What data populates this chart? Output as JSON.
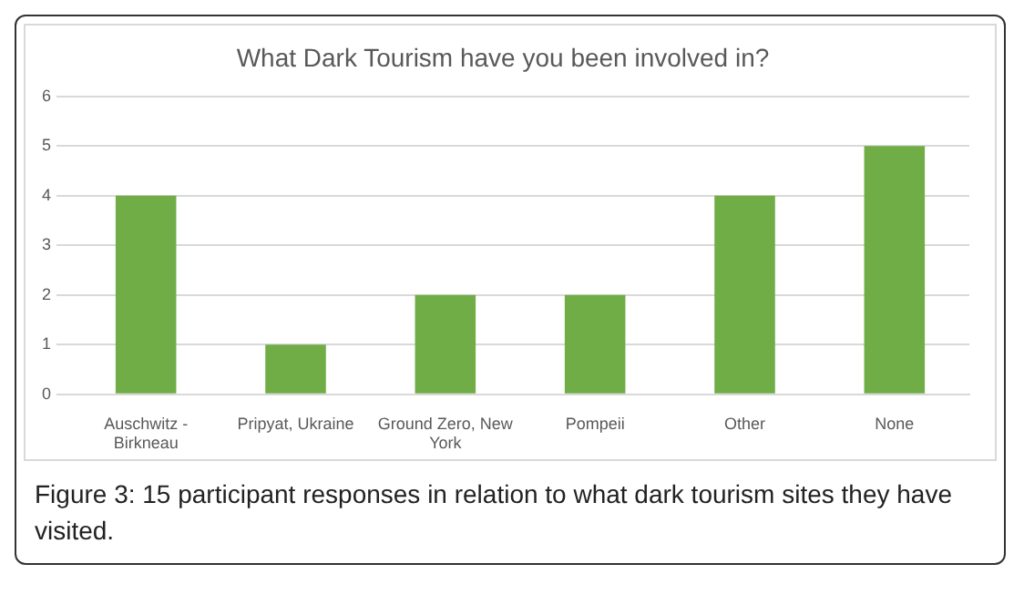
{
  "chart_data": {
    "type": "bar",
    "title": "What Dark Tourism have you been involved in?",
    "categories": [
      "Auschwitz - Birkneau",
      "Pripyat, Ukraine",
      "Ground Zero, New York",
      "Pompeii",
      "Other",
      "None"
    ],
    "values": [
      4,
      1,
      2,
      2,
      4,
      5
    ],
    "color": "#70ad47",
    "ylim": [
      0,
      6
    ],
    "yticks": [
      0,
      1,
      2,
      3,
      4,
      5,
      6
    ],
    "grid": "y",
    "legend": false,
    "annotations": [
      "Figure 3: 15 participant responses in relation to what dark tourism sites they have visited."
    ]
  }
}
